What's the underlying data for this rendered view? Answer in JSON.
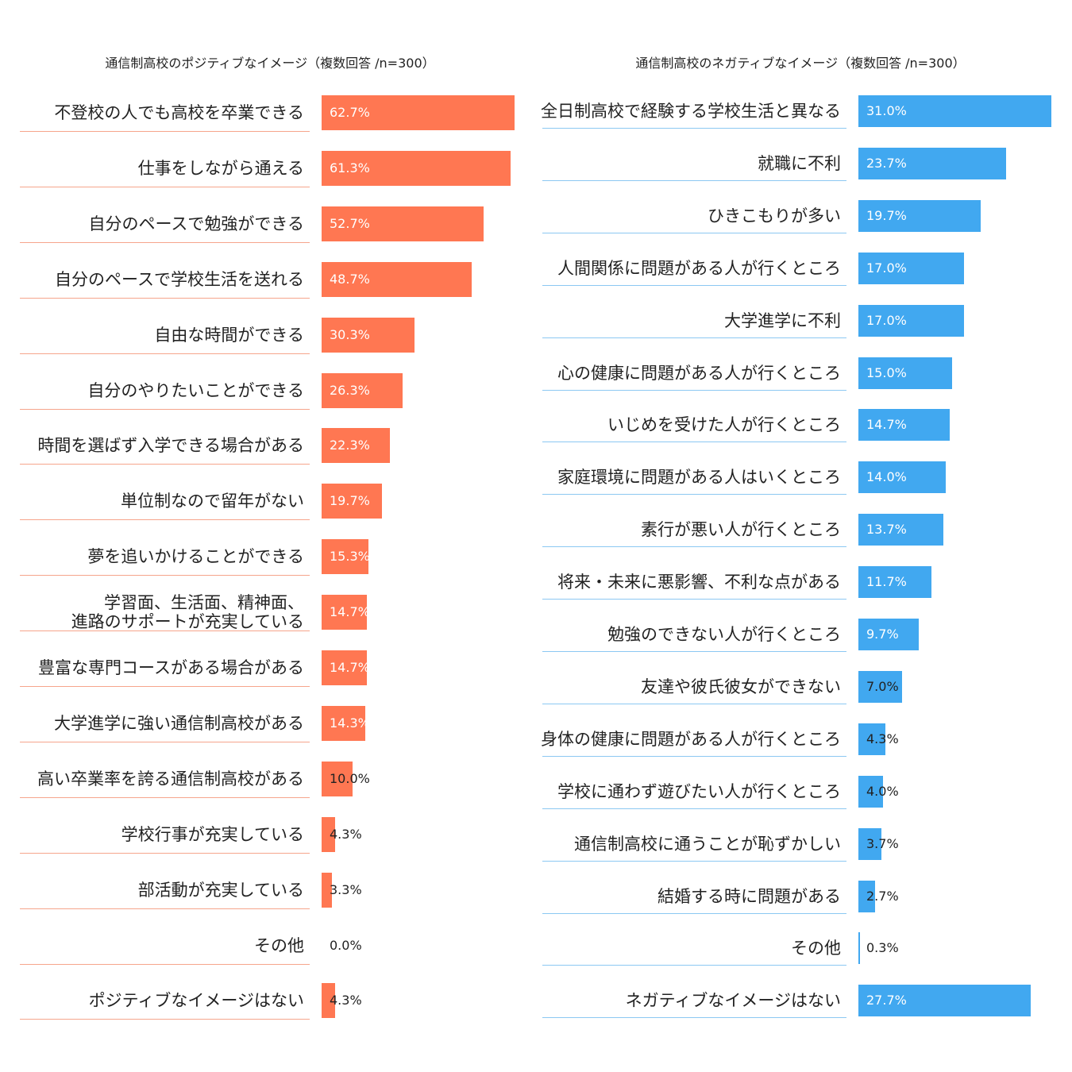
{
  "chart_data": [
    {
      "type": "hbar",
      "title": "通信制高校のポジティブなイメージ（複数回答 /n=300）",
      "color": "#ff7752",
      "categories": [
        "不登校の人でも高校を卒業できる",
        "仕事をしながら通える",
        "自分のペースで勉強ができる",
        "自分のペースで学校生活を送れる",
        "自由な時間ができる",
        "自分のやりたいことができる",
        "時間を選ばず入学できる場合がある",
        "単位制なので留年がない",
        "夢を追いかけることができる",
        "学習面、生活面、精神面、\n進路のサポートが充実している",
        "豊富な専門コースがある場合がある",
        "大学進学に強い通信制高校がある",
        "高い卒業率を誇る通信制高校がある",
        "学校行事が充実している",
        "部活動が充実している",
        "その他",
        "ポジティブなイメージはない"
      ],
      "values": [
        62.7,
        61.3,
        52.7,
        48.7,
        30.3,
        26.3,
        22.3,
        19.7,
        15.3,
        14.7,
        14.7,
        14.3,
        10.0,
        4.3,
        3.3,
        0.0,
        4.3
      ],
      "value_labels": [
        "62.7%",
        "61.3%",
        "52.7%",
        "48.7%",
        "30.3%",
        "26.3%",
        "22.3%",
        "19.7%",
        "15.3%",
        "14.7%",
        "14.7%",
        "14.3%",
        "10.0%",
        "4.3%",
        "3.3%",
        "0.0%",
        "4.3%"
      ]
    },
    {
      "type": "hbar",
      "title": "通信制高校のネガティブなイメージ（複数回答 /n=300）",
      "color": "#41a8f0",
      "categories": [
        "全日制高校で経験する学校生活と異なる",
        "就職に不利",
        "ひきこもりが多い",
        "人間関係に問題がある人が行くところ",
        "大学進学に不利",
        "心の健康に問題がある人が行くところ",
        "いじめを受けた人が行くところ",
        "家庭環境に問題がある人はいくところ",
        "素行が悪い人が行くところ",
        "将来・未来に悪影響、不利な点がある",
        "勉強のできない人が行くところ",
        "友達や彼氏彼女ができない",
        "身体の健康に問題がある人が行くところ",
        "学校に通わず遊びたい人が行くところ",
        "通信制高校に通うことが恥ずかしい",
        "結婚する時に問題がある",
        "その他",
        "ネガティブなイメージはない"
      ],
      "values": [
        31.0,
        23.7,
        19.7,
        17.0,
        17.0,
        15.0,
        14.7,
        14.0,
        13.7,
        11.7,
        9.7,
        7.0,
        4.3,
        4.0,
        3.7,
        2.7,
        0.3,
        27.7
      ],
      "value_labels": [
        "31.0%",
        "23.7%",
        "19.7%",
        "17.0%",
        "17.0%",
        "15.0%",
        "14.7%",
        "14.0%",
        "13.7%",
        "11.7%",
        "9.7%",
        "7.0%",
        "4.3%",
        "4.0%",
        "3.7%",
        "2.7%",
        "0.3%",
        "27.7%"
      ]
    }
  ]
}
